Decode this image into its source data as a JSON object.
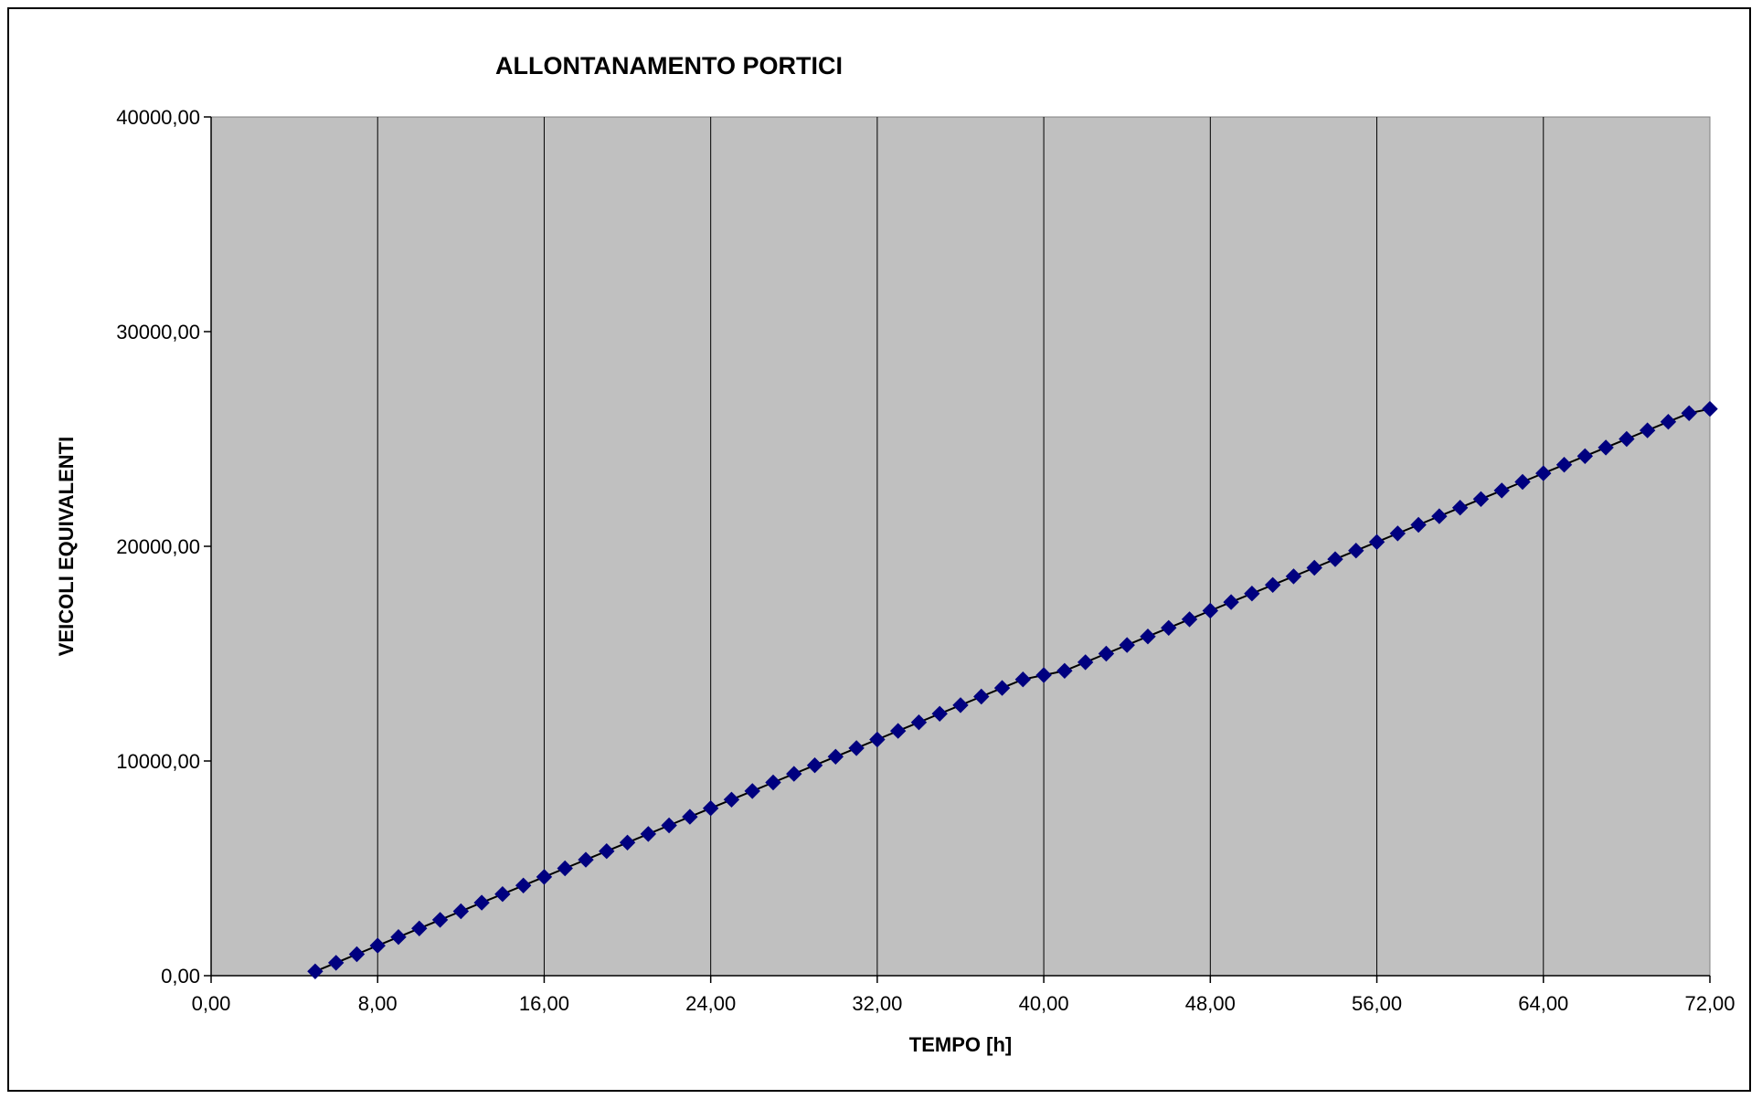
{
  "chart_data": {
    "type": "line",
    "title": "ALLONTANAMENTO PORTICI",
    "xlabel": "TEMPO [h]",
    "ylabel": "VEICOLI EQUIVALENTI",
    "xlim": [
      0,
      72
    ],
    "ylim": [
      0,
      40000
    ],
    "x_ticks": [
      "0,00",
      "8,00",
      "16,00",
      "24,00",
      "32,00",
      "40,00",
      "48,00",
      "56,00",
      "64,00",
      "72,00"
    ],
    "y_ticks": [
      "0,00",
      "10000,00",
      "20000,00",
      "30000,00",
      "40000,00"
    ],
    "grid": "vertical",
    "legend": "none",
    "colors": {
      "plot_background": "#c0c0c0",
      "series_line": "#000000",
      "series_marker": "#000080"
    },
    "series": [
      {
        "marker": "diamond",
        "x": [
          5,
          6,
          7,
          8,
          9,
          10,
          11,
          12,
          13,
          14,
          15,
          16,
          17,
          18,
          19,
          20,
          21,
          22,
          23,
          24,
          25,
          26,
          27,
          28,
          29,
          30,
          31,
          32,
          33,
          34,
          35,
          36,
          37,
          38,
          39,
          40,
          41,
          42,
          43,
          44,
          45,
          46,
          47,
          48,
          49,
          50,
          51,
          52,
          53,
          54,
          55,
          56,
          57,
          58,
          59,
          60,
          61,
          62,
          63,
          64,
          65,
          66,
          67,
          68,
          69,
          70,
          71,
          72
        ],
        "values": [
          200,
          600,
          1000,
          1400,
          1800,
          2200,
          2600,
          3000,
          3400,
          3800,
          4200,
          4600,
          5000,
          5400,
          5800,
          6200,
          6600,
          7000,
          7400,
          7800,
          8200,
          8600,
          9000,
          9400,
          9800,
          10200,
          10600,
          11000,
          11400,
          11800,
          12200,
          12600,
          13000,
          13400,
          13800,
          14000,
          14200,
          14600,
          15000,
          15400,
          15800,
          16200,
          16600,
          17000,
          17400,
          17800,
          18200,
          18600,
          19000,
          19400,
          19800,
          20200,
          20600,
          21000,
          21400,
          21800,
          22200,
          22600,
          23000,
          23400,
          23800,
          24200,
          24600,
          25000,
          25400,
          25800,
          26200,
          26400
        ]
      }
    ]
  }
}
